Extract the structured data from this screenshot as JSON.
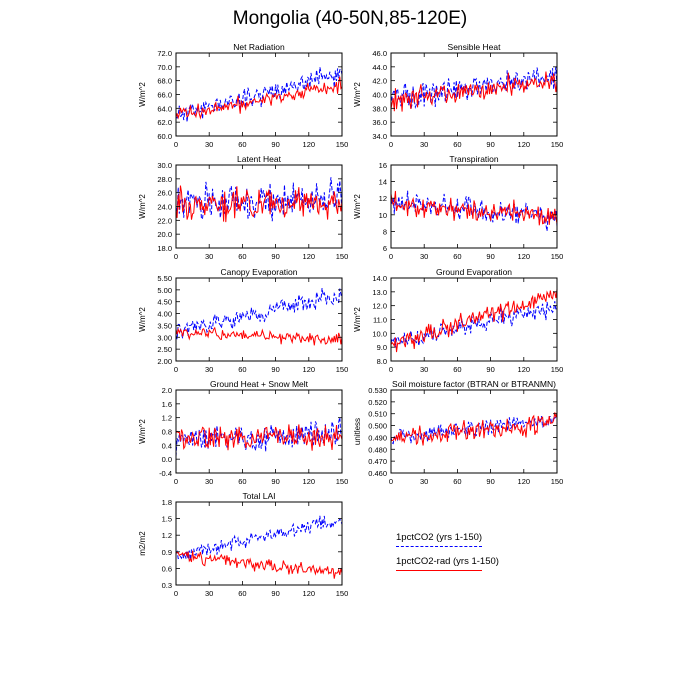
{
  "page_title": "Mongolia (40-50N,85-120E)",
  "legend": [
    {
      "label": "1pctCO2 (yrs 1-150)",
      "color": "#0000ff",
      "dash": "dash"
    },
    {
      "label": "1pctCO2-rad (yrs 1-150)",
      "color": "#ff0000",
      "dash": "solid"
    }
  ],
  "chart_data": [
    {
      "type": "line",
      "title": "Net Radiation",
      "ylabel": "W/m^2",
      "ylim": [
        60,
        72
      ],
      "yticks": [
        60,
        62,
        64,
        66,
        68,
        70,
        72
      ],
      "ytick_labels": [
        "60.0",
        "62.0",
        "64.0",
        "66.0",
        "68.0",
        "70.0",
        "72.0"
      ],
      "xlim": [
        0,
        150
      ],
      "xticks": [
        0,
        30,
        60,
        90,
        120,
        150
      ],
      "series": [
        {
          "name": "1pctCO2",
          "color": "#0000ff",
          "start": 63.0,
          "end": 69.0,
          "noise": 1.3,
          "seed": 11
        },
        {
          "name": "1pctCO2-rad",
          "color": "#ff0000",
          "start": 63.0,
          "end": 67.3,
          "noise": 1.0,
          "seed": 12
        }
      ]
    },
    {
      "type": "line",
      "title": "Sensible Heat",
      "ylabel": "W/m^2",
      "ylim": [
        34,
        46
      ],
      "yticks": [
        34,
        36,
        38,
        40,
        42,
        44,
        46
      ],
      "ytick_labels": [
        "34.0",
        "36.0",
        "38.0",
        "40.0",
        "42.0",
        "44.0",
        "46.0"
      ],
      "xlim": [
        0,
        150
      ],
      "xticks": [
        0,
        30,
        60,
        90,
        120,
        150
      ],
      "series": [
        {
          "name": "1pctCO2",
          "color": "#0000ff",
          "start": 39.5,
          "end": 42.5,
          "noise": 1.6,
          "seed": 21
        },
        {
          "name": "1pctCO2-rad",
          "color": "#ff0000",
          "start": 39.3,
          "end": 41.8,
          "noise": 1.4,
          "seed": 22
        }
      ]
    },
    {
      "type": "line",
      "title": "Latent Heat",
      "ylabel": "W/m^2",
      "ylim": [
        18,
        30
      ],
      "yticks": [
        18,
        20,
        22,
        24,
        26,
        28,
        30
      ],
      "ytick_labels": [
        "18.0",
        "20.0",
        "22.0",
        "24.0",
        "26.0",
        "28.0",
        "30.0"
      ],
      "xlim": [
        0,
        150
      ],
      "xticks": [
        0,
        30,
        60,
        90,
        120,
        150
      ],
      "series": [
        {
          "name": "1pctCO2",
          "color": "#0000ff",
          "start": 24.5,
          "end": 25.0,
          "noise": 2.3,
          "seed": 31
        },
        {
          "name": "1pctCO2-rad",
          "color": "#ff0000",
          "start": 24.5,
          "end": 24.5,
          "noise": 2.0,
          "seed": 32
        }
      ]
    },
    {
      "type": "line",
      "title": "Transpiration",
      "ylabel": "W/m^2",
      "ylim": [
        6,
        16
      ],
      "yticks": [
        6,
        8,
        10,
        12,
        14,
        16
      ],
      "ytick_labels": [
        "6",
        "8",
        "10",
        "12",
        "14",
        "16"
      ],
      "xlim": [
        0,
        150
      ],
      "xticks": [
        0,
        30,
        60,
        90,
        120,
        150
      ],
      "series": [
        {
          "name": "1pctCO2",
          "color": "#0000ff",
          "start": 11.5,
          "end": 9.5,
          "noise": 1.4,
          "seed": 41
        },
        {
          "name": "1pctCO2-rad",
          "color": "#ff0000",
          "start": 11.2,
          "end": 9.8,
          "noise": 1.2,
          "seed": 42
        }
      ]
    },
    {
      "type": "line",
      "title": "Canopy Evaporation",
      "ylabel": "W/m^2",
      "ylim": [
        2,
        5.5
      ],
      "yticks": [
        2,
        2.5,
        3,
        3.5,
        4,
        4.5,
        5,
        5.5
      ],
      "ytick_labels": [
        "2.00",
        "2.50",
        "3.00",
        "3.50",
        "4.00",
        "4.50",
        "5.00",
        "5.50"
      ],
      "xlim": [
        0,
        150
      ],
      "xticks": [
        0,
        30,
        60,
        90,
        120,
        150
      ],
      "series": [
        {
          "name": "1pctCO2",
          "color": "#0000ff",
          "start": 3.2,
          "end": 4.8,
          "noise": 0.35,
          "seed": 51
        },
        {
          "name": "1pctCO2-rad",
          "color": "#ff0000",
          "start": 3.2,
          "end": 2.9,
          "noise": 0.25,
          "seed": 52
        }
      ]
    },
    {
      "type": "line",
      "title": "Ground Evaporation",
      "ylabel": "W/m^2",
      "ylim": [
        8,
        14
      ],
      "yticks": [
        8,
        9,
        10,
        11,
        12,
        13,
        14
      ],
      "ytick_labels": [
        "8.0",
        "9.0",
        "10.0",
        "11.0",
        "12.0",
        "13.0",
        "14.0"
      ],
      "xlim": [
        0,
        150
      ],
      "xticks": [
        0,
        30,
        60,
        90,
        120,
        150
      ],
      "series": [
        {
          "name": "1pctCO2",
          "color": "#0000ff",
          "start": 9.2,
          "end": 12.0,
          "noise": 0.6,
          "seed": 61
        },
        {
          "name": "1pctCO2-rad",
          "color": "#ff0000",
          "start": 9.2,
          "end": 12.8,
          "noise": 0.6,
          "seed": 62
        }
      ]
    },
    {
      "type": "line",
      "title": "Ground Heat + Snow Melt",
      "ylabel": "W/m^2",
      "ylim": [
        -0.4,
        2
      ],
      "yticks": [
        -0.4,
        0,
        0.4,
        0.8,
        1.2,
        1.6,
        2
      ],
      "ytick_labels": [
        "-0.4",
        "0.0",
        "0.4",
        "0.8",
        "1.2",
        "1.6",
        "2.0"
      ],
      "xlim": [
        0,
        150
      ],
      "xticks": [
        0,
        30,
        60,
        90,
        120,
        150
      ],
      "series": [
        {
          "name": "1pctCO2",
          "color": "#0000ff",
          "start": 0.6,
          "end": 0.7,
          "noise": 0.35,
          "seed": 71
        },
        {
          "name": "1pctCO2-rad",
          "color": "#ff0000",
          "start": 0.6,
          "end": 0.65,
          "noise": 0.35,
          "seed": 72
        }
      ]
    },
    {
      "type": "line",
      "title": "Soil moisture factor (BTRAN or BTRANMN)",
      "ylabel": "unitless",
      "ylim": [
        0.46,
        0.53
      ],
      "yticks": [
        0.46,
        0.47,
        0.48,
        0.49,
        0.5,
        0.51,
        0.52,
        0.53
      ],
      "ytick_labels": [
        "0.460",
        "0.470",
        "0.480",
        "0.490",
        "0.500",
        "0.510",
        "0.520",
        "0.530"
      ],
      "xlim": [
        0,
        150
      ],
      "xticks": [
        0,
        30,
        60,
        90,
        120,
        150
      ],
      "series": [
        {
          "name": "1pctCO2",
          "color": "#0000ff",
          "start": 0.49,
          "end": 0.505,
          "noise": 0.007,
          "seed": 81
        },
        {
          "name": "1pctCO2-rad",
          "color": "#ff0000",
          "start": 0.488,
          "end": 0.503,
          "noise": 0.008,
          "seed": 82
        }
      ]
    },
    {
      "type": "line",
      "title": "Total LAI",
      "ylabel": "m2/m2",
      "ylim": [
        0.3,
        1.8
      ],
      "yticks": [
        0.3,
        0.6,
        0.9,
        1.2,
        1.5,
        1.8
      ],
      "ytick_labels": [
        "0.3",
        "0.6",
        "0.9",
        "1.2",
        "1.5",
        "1.8"
      ],
      "xlim": [
        0,
        150
      ],
      "xticks": [
        0,
        30,
        60,
        90,
        120,
        150
      ],
      "series": [
        {
          "name": "1pctCO2",
          "color": "#0000ff",
          "start": 0.8,
          "end": 1.5,
          "noise": 0.12,
          "seed": 91
        },
        {
          "name": "1pctCO2-rad",
          "color": "#ff0000",
          "start": 0.85,
          "end": 0.5,
          "noise": 0.1,
          "seed": 92
        }
      ]
    }
  ]
}
